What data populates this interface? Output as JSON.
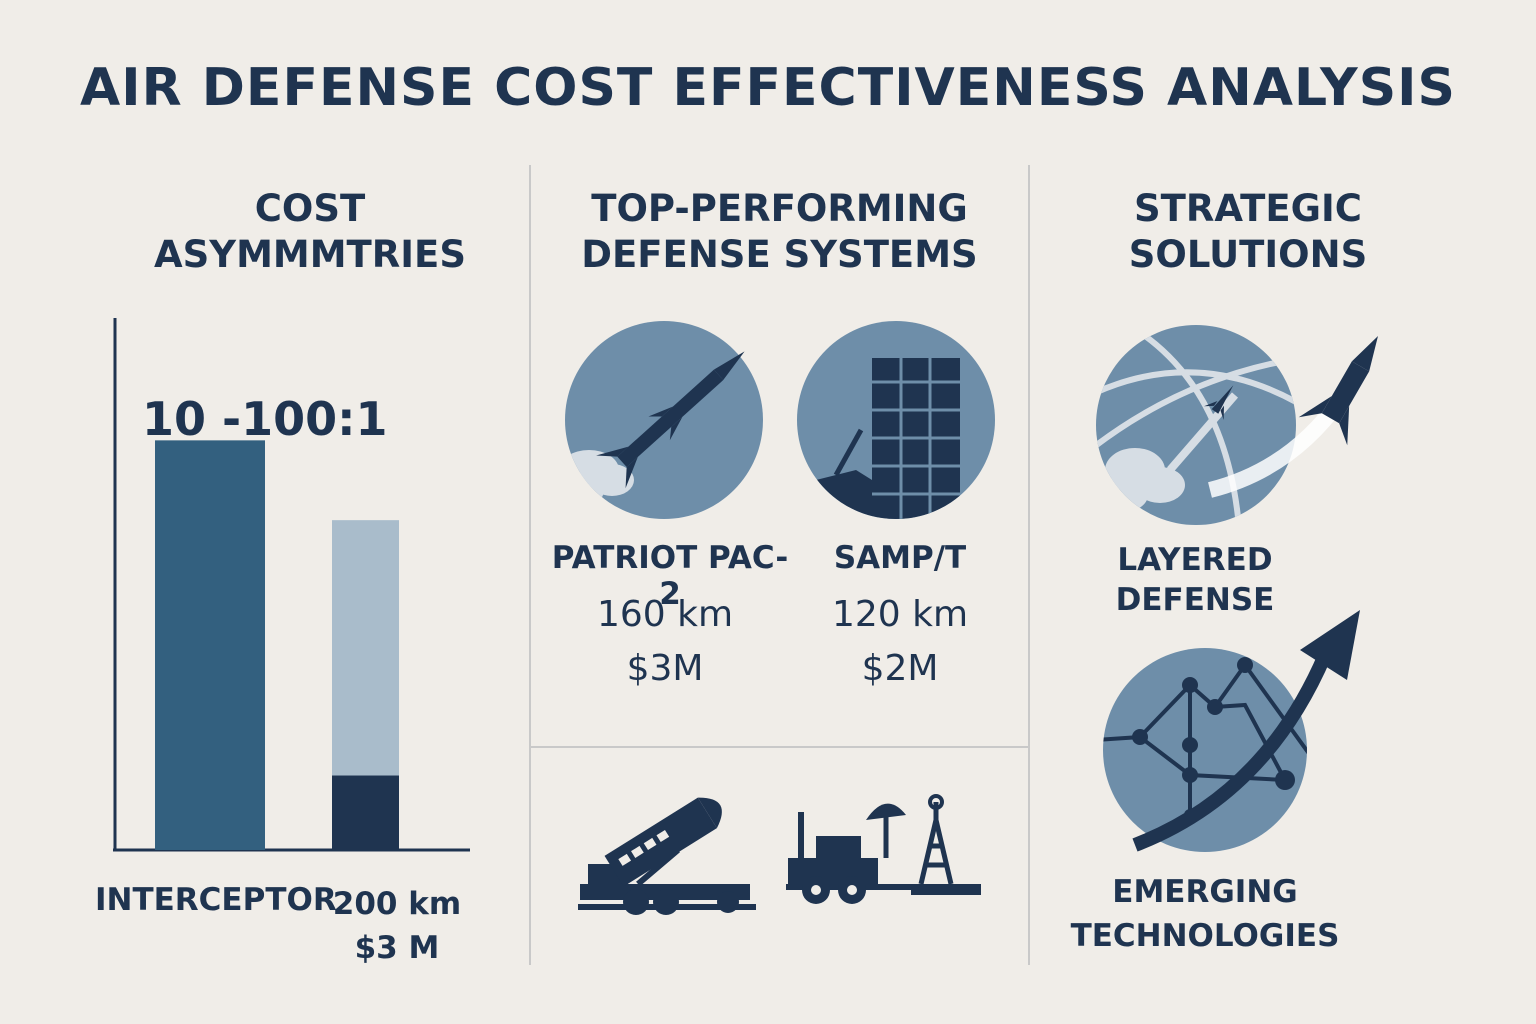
{
  "title": "AIR DEFENSE COST EFFECTIVENESS ANALYSIS",
  "left_panel": {
    "heading_line1": "COST",
    "heading_line2": "ASYMMMTRIES",
    "ratio_label": "10 -100:1",
    "bar_labels": {
      "first": "INTERCEPTOR",
      "second_line1": "200 km",
      "second_line2": "$3 M"
    }
  },
  "chart_data": {
    "type": "bar",
    "categories": [
      "INTERCEPTOR",
      "200 km / $3 M"
    ],
    "series": [
      {
        "values": [
          0.77,
          0.62
        ]
      },
      {
        "values": [
          0,
          0.14
        ]
      }
    ],
    "annotations": [
      "10 -100:1"
    ]
  },
  "middle_panel": {
    "heading_line1": "TOP-PERFORMING",
    "heading_line2": "DEFENSE SYSTEMS",
    "systems": [
      {
        "name": "PATRIOT PAC-2",
        "range": "160 km",
        "cost": "$3M",
        "icon": "missile-icon"
      },
      {
        "name": "SAMP/T",
        "range": "120 km",
        "cost": "$2M",
        "icon": "launcher-canisters-icon"
      }
    ],
    "bottom_icons": [
      "mobile-launcher-icon",
      "radar-vehicle-icon"
    ]
  },
  "right_panel": {
    "heading_line1": "STRATEGIC",
    "heading_line2": "SOLUTIONS",
    "items": [
      {
        "label_line1": "LAYERED",
        "label_line2": "DEFENSE",
        "icon": "layered-globe-icon"
      },
      {
        "label_line1": "EMERGING",
        "label_line2": "TECHNOLOGIES",
        "icon": "network-growth-icon"
      }
    ]
  },
  "colors": {
    "background": "#f0ede8",
    "navy": "#1f3450",
    "steel_blue": "#33607f",
    "light_blue": "#a9bccb",
    "circle_blue": "#6e8ea9",
    "divider": "#c9c9c9"
  }
}
